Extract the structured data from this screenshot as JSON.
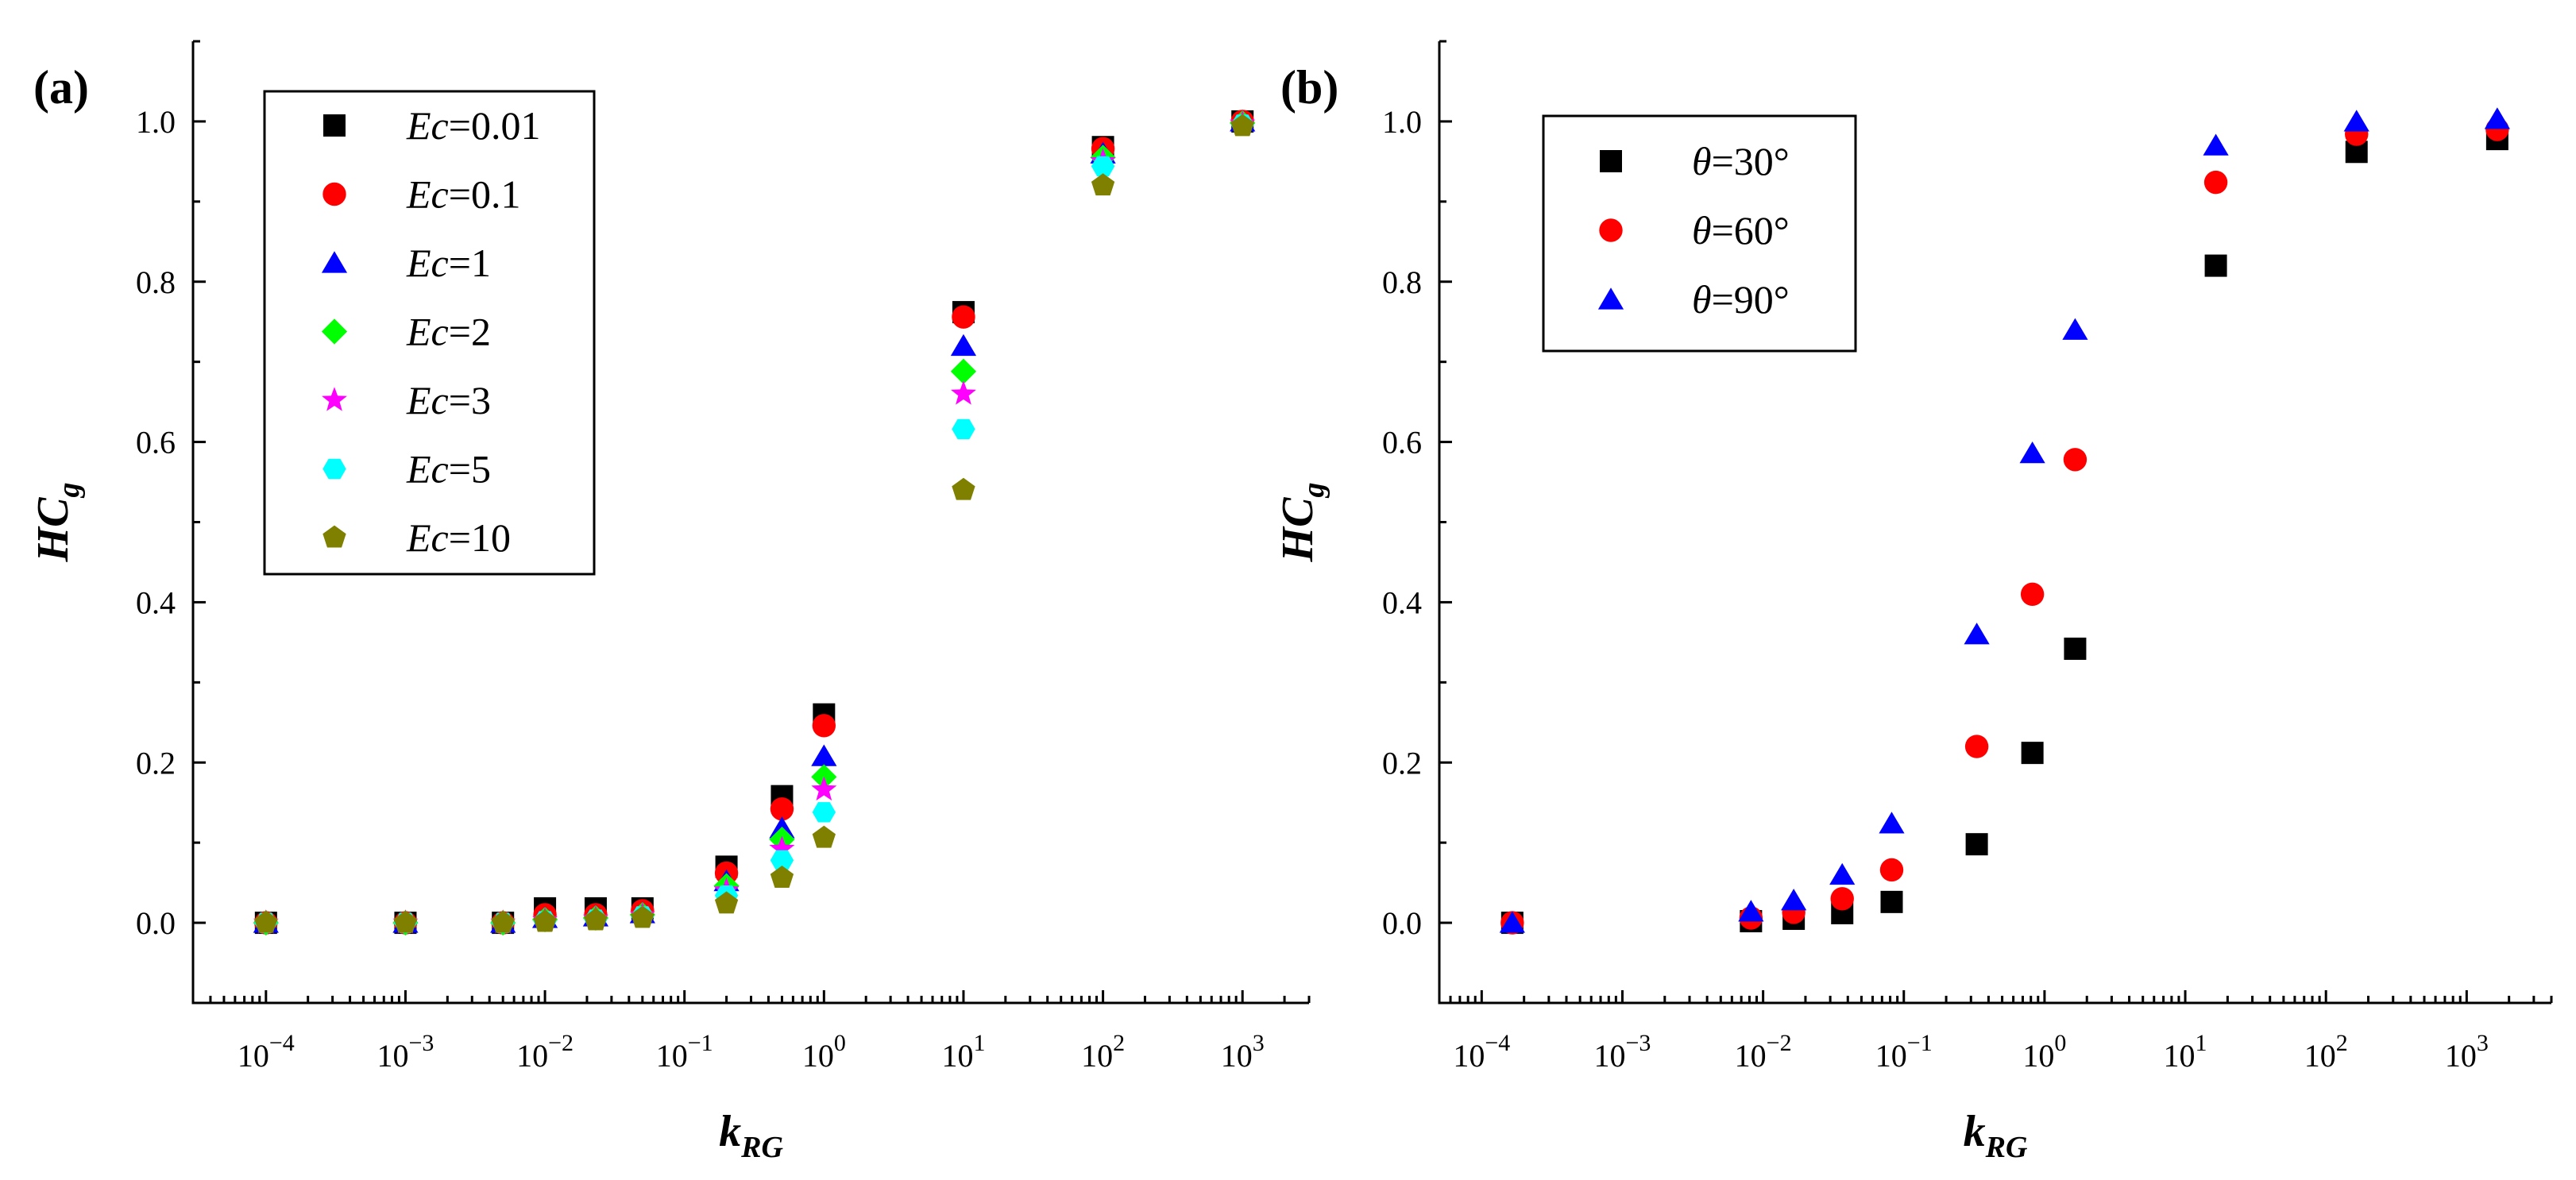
{
  "chart_data": [
    {
      "panel_label": "(a)",
      "type": "scatter",
      "xscale": "log",
      "xlim": [
        3e-05,
        3000
      ],
      "ylim": [
        -0.1,
        1.1
      ],
      "x_ticks": [
        0.0001,
        0.001,
        0.01,
        0.1,
        1,
        10,
        100,
        1000
      ],
      "x_tick_labels": [
        {
          "base": "10",
          "exp": "−4"
        },
        {
          "base": "10",
          "exp": "−3"
        },
        {
          "base": "10",
          "exp": "−2"
        },
        {
          "base": "10",
          "exp": "−1"
        },
        {
          "base": "10",
          "exp": "0"
        },
        {
          "base": "10",
          "exp": "1"
        },
        {
          "base": "10",
          "exp": "2"
        },
        {
          "base": "10",
          "exp": "3"
        }
      ],
      "y_ticks": [
        0.0,
        0.2,
        0.4,
        0.6,
        0.8,
        1.0
      ],
      "y_tick_labels": [
        "0.0",
        "0.2",
        "0.4",
        "0.6",
        "0.8",
        "1.0"
      ],
      "xlabel": {
        "main": "k",
        "sub": "RG"
      },
      "ylabel": {
        "main": "HC",
        "sub": "g"
      },
      "legend_position": "top-left",
      "series": [
        {
          "prefix": "Ec",
          "sep": "=",
          "value": "0.01",
          "marker": "square",
          "color": "#000000",
          "x": [
            0.0001,
            0.001,
            0.005,
            0.01,
            0.0231,
            0.05,
            0.2,
            0.5,
            1,
            10,
            100,
            1000
          ],
          "y": [
            0.0,
            0.0,
            0.0,
            0.018,
            0.018,
            0.018,
            0.07,
            0.158,
            0.26,
            0.762,
            0.968,
            1.0
          ]
        },
        {
          "prefix": "Ec",
          "sep": "=",
          "value": "0.1",
          "marker": "circle",
          "color": "#ff0000",
          "x": [
            0.0001,
            0.001,
            0.005,
            0.01,
            0.0231,
            0.05,
            0.2,
            0.5,
            1,
            10,
            100,
            1000
          ],
          "y": [
            0.0,
            0.0,
            0.0,
            0.01,
            0.01,
            0.015,
            0.062,
            0.142,
            0.246,
            0.756,
            0.966,
            1.0
          ]
        },
        {
          "prefix": "Ec",
          "sep": "=",
          "value": "1",
          "marker": "triangle",
          "color": "#0000ff",
          "x": [
            0.0001,
            0.001,
            0.005,
            0.01,
            0.0231,
            0.05,
            0.2,
            0.5,
            1,
            10,
            100,
            1000
          ],
          "y": [
            0.0,
            0.0,
            0.0,
            0.006,
            0.008,
            0.012,
            0.052,
            0.118,
            0.208,
            0.72,
            0.96,
            1.0
          ]
        },
        {
          "prefix": "Ec",
          "sep": "=",
          "value": "2",
          "marker": "diamond",
          "color": "#00ff00",
          "x": [
            0.0001,
            0.001,
            0.005,
            0.01,
            0.0231,
            0.05,
            0.2,
            0.5,
            1,
            10,
            100,
            1000
          ],
          "y": [
            0.0,
            0.0,
            0.0,
            0.004,
            0.006,
            0.01,
            0.046,
            0.104,
            0.182,
            0.688,
            0.955,
            0.998
          ]
        },
        {
          "prefix": "Ec",
          "sep": "=",
          "value": "3",
          "marker": "star",
          "color": "#ff00ff",
          "x": [
            0.0001,
            0.001,
            0.005,
            0.01,
            0.0231,
            0.05,
            0.2,
            0.5,
            1,
            10,
            100,
            1000
          ],
          "y": [
            0.0,
            0.0,
            0.0,
            0.003,
            0.005,
            0.009,
            0.04,
            0.092,
            0.166,
            0.66,
            0.95,
            0.997
          ]
        },
        {
          "prefix": "Ec",
          "sep": "=",
          "value": "5",
          "marker": "hexagon",
          "color": "#00ffff",
          "x": [
            0.0001,
            0.001,
            0.005,
            0.01,
            0.0231,
            0.05,
            0.2,
            0.5,
            1,
            10,
            100,
            1000
          ],
          "y": [
            0.0,
            0.0,
            0.0,
            0.002,
            0.004,
            0.008,
            0.034,
            0.078,
            0.138,
            0.616,
            0.944,
            0.996
          ]
        },
        {
          "prefix": "Ec",
          "sep": "=",
          "value": "10",
          "marker": "pentagon",
          "color": "#808000",
          "x": [
            0.0001,
            0.001,
            0.005,
            0.01,
            0.0231,
            0.05,
            0.2,
            0.5,
            1,
            10,
            100,
            1000
          ],
          "y": [
            0.0,
            0.0,
            0.0,
            0.001,
            0.003,
            0.006,
            0.024,
            0.056,
            0.106,
            0.54,
            0.92,
            0.994
          ]
        }
      ]
    },
    {
      "panel_label": "(b)",
      "type": "scatter",
      "xscale": "log",
      "xlim": [
        5e-05,
        4000
      ],
      "ylim": [
        -0.1,
        1.1
      ],
      "x_ticks": [
        0.0001,
        0.001,
        0.01,
        0.1,
        1,
        10,
        100,
        1000
      ],
      "x_tick_labels": [
        {
          "base": "10",
          "exp": "−4"
        },
        {
          "base": "10",
          "exp": "−3"
        },
        {
          "base": "10",
          "exp": "−2"
        },
        {
          "base": "10",
          "exp": "−1"
        },
        {
          "base": "10",
          "exp": "0"
        },
        {
          "base": "10",
          "exp": "1"
        },
        {
          "base": "10",
          "exp": "2"
        },
        {
          "base": "10",
          "exp": "3"
        }
      ],
      "y_ticks": [
        0.0,
        0.2,
        0.4,
        0.6,
        0.8,
        1.0
      ],
      "y_tick_labels": [
        "0.0",
        "0.2",
        "0.4",
        "0.6",
        "0.8",
        "1.0"
      ],
      "xlabel": {
        "main": "k",
        "sub": "RG"
      },
      "ylabel": {
        "main": "HC",
        "sub": "g"
      },
      "legend_position": "top-left",
      "series": [
        {
          "prefix": "θ",
          "sep": "=",
          "value": "30°",
          "marker": "square",
          "color": "#000000",
          "x": [
            0.000165,
            0.0082,
            0.0165,
            0.0365,
            0.082,
            0.33,
            0.82,
            1.65,
            16.5,
            165,
            1650
          ],
          "y": [
            0.0,
            0.002,
            0.005,
            0.012,
            0.026,
            0.098,
            0.212,
            0.342,
            0.82,
            0.962,
            0.978
          ]
        },
        {
          "prefix": "θ",
          "sep": "=",
          "value": "60°",
          "marker": "circle",
          "color": "#ff0000",
          "x": [
            0.000165,
            0.0082,
            0.0165,
            0.0365,
            0.082,
            0.33,
            0.82,
            1.65,
            16.5,
            165,
            1650
          ],
          "y": [
            0.0,
            0.006,
            0.013,
            0.03,
            0.066,
            0.22,
            0.41,
            0.578,
            0.924,
            0.984,
            0.99
          ]
        },
        {
          "prefix": "θ",
          "sep": "=",
          "value": "90°",
          "marker": "triangle",
          "color": "#0000ff",
          "x": [
            0.000165,
            0.0082,
            0.0165,
            0.0365,
            0.082,
            0.33,
            0.82,
            1.65,
            16.5,
            165,
            1650
          ],
          "y": [
            0.0,
            0.014,
            0.028,
            0.06,
            0.124,
            0.36,
            0.586,
            0.74,
            0.97,
            1.0,
            1.003
          ]
        }
      ]
    }
  ]
}
